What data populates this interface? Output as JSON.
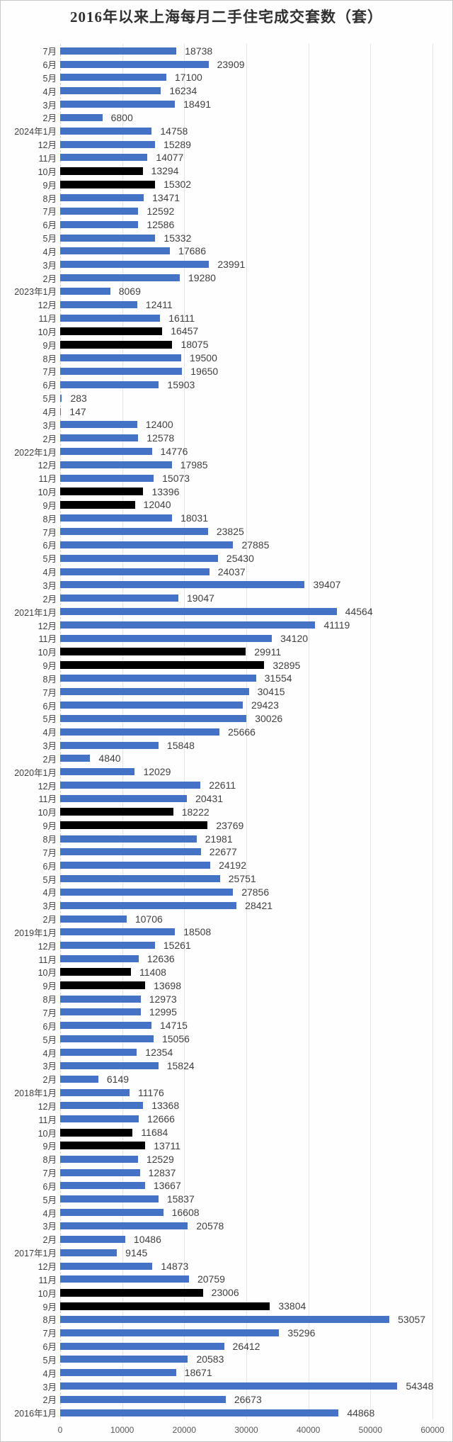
{
  "colors": {
    "bar_primary": "#4472c4",
    "bar_highlight": "#000000",
    "grid": "#e4e4e4",
    "text": "#3f3f3f",
    "axis_text": "#595959",
    "page_border": "#c9c9c9"
  },
  "chart_data": {
    "type": "bar",
    "orientation": "horizontal",
    "title": "2016年以来上海每月二手住宅成交套数（套）",
    "xlabel": "",
    "ylabel": "",
    "xlim": [
      0,
      60000
    ],
    "x_ticks": [
      0,
      10000,
      20000,
      30000,
      40000,
      50000,
      60000
    ],
    "grid": true,
    "legend": "none",
    "note": "rows listed top-to-bottom; highlight=true bars (every September/October) are drawn black",
    "rows": [
      {
        "label": "7月",
        "value": 18738
      },
      {
        "label": "6月",
        "value": 23909
      },
      {
        "label": "5月",
        "value": 17100
      },
      {
        "label": "4月",
        "value": 16234
      },
      {
        "label": "3月",
        "value": 18491
      },
      {
        "label": "2月",
        "value": 6800
      },
      {
        "label": "2024年1月",
        "value": 14758
      },
      {
        "label": "12月",
        "value": 15289
      },
      {
        "label": "11月",
        "value": 14077
      },
      {
        "label": "10月",
        "value": 13294,
        "highlight": true
      },
      {
        "label": "9月",
        "value": 15302,
        "highlight": true
      },
      {
        "label": "8月",
        "value": 13471
      },
      {
        "label": "7月",
        "value": 12592
      },
      {
        "label": "6月",
        "value": 12586
      },
      {
        "label": "5月",
        "value": 15332
      },
      {
        "label": "4月",
        "value": 17686
      },
      {
        "label": "3月",
        "value": 23991
      },
      {
        "label": "2月",
        "value": 19280
      },
      {
        "label": "2023年1月",
        "value": 8069
      },
      {
        "label": "12月",
        "value": 12411
      },
      {
        "label": "11月",
        "value": 16111
      },
      {
        "label": "10月",
        "value": 16457,
        "highlight": true
      },
      {
        "label": "9月",
        "value": 18075,
        "highlight": true
      },
      {
        "label": "8月",
        "value": 19500
      },
      {
        "label": "7月",
        "value": 19650
      },
      {
        "label": "6月",
        "value": 15903
      },
      {
        "label": "5月",
        "value": 283
      },
      {
        "label": "4月",
        "value": 147
      },
      {
        "label": "3月",
        "value": 12400
      },
      {
        "label": "2月",
        "value": 12578
      },
      {
        "label": "2022年1月",
        "value": 14776
      },
      {
        "label": "12月",
        "value": 17985
      },
      {
        "label": "11月",
        "value": 15073
      },
      {
        "label": "10月",
        "value": 13396,
        "highlight": true
      },
      {
        "label": "9月",
        "value": 12040,
        "highlight": true
      },
      {
        "label": "8月",
        "value": 18031
      },
      {
        "label": "7月",
        "value": 23825
      },
      {
        "label": "6月",
        "value": 27885
      },
      {
        "label": "5月",
        "value": 25430
      },
      {
        "label": "4月",
        "value": 24037
      },
      {
        "label": "3月",
        "value": 39407
      },
      {
        "label": "2月",
        "value": 19047
      },
      {
        "label": "2021年1月",
        "value": 44564
      },
      {
        "label": "12月",
        "value": 41119
      },
      {
        "label": "11月",
        "value": 34120
      },
      {
        "label": "10月",
        "value": 29911,
        "highlight": true
      },
      {
        "label": "9月",
        "value": 32895,
        "highlight": true
      },
      {
        "label": "8月",
        "value": 31554
      },
      {
        "label": "7月",
        "value": 30415
      },
      {
        "label": "6月",
        "value": 29423
      },
      {
        "label": "5月",
        "value": 30026
      },
      {
        "label": "4月",
        "value": 25666
      },
      {
        "label": "3月",
        "value": 15848
      },
      {
        "label": "2月",
        "value": 4840
      },
      {
        "label": "2020年1月",
        "value": 12029
      },
      {
        "label": "12月",
        "value": 22611
      },
      {
        "label": "11月",
        "value": 20431
      },
      {
        "label": "10月",
        "value": 18222,
        "highlight": true
      },
      {
        "label": "9月",
        "value": 23769,
        "highlight": true
      },
      {
        "label": "8月",
        "value": 21981
      },
      {
        "label": "7月",
        "value": 22677
      },
      {
        "label": "6月",
        "value": 24192
      },
      {
        "label": "5月",
        "value": 25751
      },
      {
        "label": "4月",
        "value": 27856
      },
      {
        "label": "3月",
        "value": 28421
      },
      {
        "label": "2月",
        "value": 10706
      },
      {
        "label": "2019年1月",
        "value": 18508
      },
      {
        "label": "12月",
        "value": 15261
      },
      {
        "label": "11月",
        "value": 12636
      },
      {
        "label": "10月",
        "value": 11408,
        "highlight": true
      },
      {
        "label": "9月",
        "value": 13698,
        "highlight": true
      },
      {
        "label": "8月",
        "value": 12973
      },
      {
        "label": "7月",
        "value": 12995
      },
      {
        "label": "6月",
        "value": 14715
      },
      {
        "label": "5月",
        "value": 15056
      },
      {
        "label": "4月",
        "value": 12354
      },
      {
        "label": "3月",
        "value": 15824
      },
      {
        "label": "2月",
        "value": 6149
      },
      {
        "label": "2018年1月",
        "value": 11176
      },
      {
        "label": "12月",
        "value": 13368
      },
      {
        "label": "11月",
        "value": 12666
      },
      {
        "label": "10月",
        "value": 11684,
        "highlight": true
      },
      {
        "label": "9月",
        "value": 13711,
        "highlight": true
      },
      {
        "label": "8月",
        "value": 12529
      },
      {
        "label": "7月",
        "value": 12837
      },
      {
        "label": "6月",
        "value": 13667
      },
      {
        "label": "5月",
        "value": 15837
      },
      {
        "label": "4月",
        "value": 16608
      },
      {
        "label": "3月",
        "value": 20578
      },
      {
        "label": "2月",
        "value": 10486
      },
      {
        "label": "2017年1月",
        "value": 9145
      },
      {
        "label": "12月",
        "value": 14873
      },
      {
        "label": "11月",
        "value": 20759
      },
      {
        "label": "10月",
        "value": 23006,
        "highlight": true
      },
      {
        "label": "9月",
        "value": 33804,
        "highlight": true
      },
      {
        "label": "8月",
        "value": 53057
      },
      {
        "label": "7月",
        "value": 35296
      },
      {
        "label": "6月",
        "value": 26412
      },
      {
        "label": "5月",
        "value": 20583
      },
      {
        "label": "4月",
        "value": 18671
      },
      {
        "label": "3月",
        "value": 54348
      },
      {
        "label": "2月",
        "value": 26673
      },
      {
        "label": "2016年1月",
        "value": 44868
      }
    ]
  }
}
